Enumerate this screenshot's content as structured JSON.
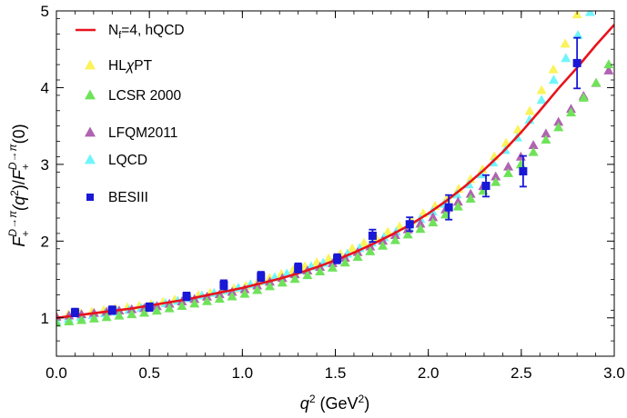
{
  "chart_data": {
    "type": "scatter",
    "xlabel_base": "q",
    "xlabel_sup": "2",
    "xlabel_units": " (GeV",
    "xlabel_units_sup": "2",
    "xlabel_close": ")",
    "ylabel_text": "F+(q2)/F+(0)",
    "ylabel_parts": {
      "f1": "F",
      "sub1": "+",
      "sup1": "D→π",
      "open": "(q",
      "sq": "2",
      "close": ")/",
      "f2": "F",
      "sub2": "+",
      "sup2": "D→π",
      "end": "(0)"
    },
    "xlim": [
      0.0,
      3.0
    ],
    "ylim": [
      0.5,
      5.0
    ],
    "xticks": [
      "0.0",
      "0.5",
      "1.0",
      "1.5",
      "2.0",
      "2.5",
      "3.0"
    ],
    "yticks": [
      "1",
      "2",
      "3",
      "4",
      "5"
    ],
    "colors": {
      "hqcd": "#e8131d",
      "hlchipt": "#fbf35a",
      "lcsr": "#6fe25a",
      "lfqm": "#b063b1",
      "lqcd": "#6ff5fb",
      "besiii": "#1818d6"
    },
    "legend": [
      {
        "key": "hqcd",
        "marker": "line",
        "label": "N_f=4, hQCD",
        "label_main": "N",
        "label_sub": "f",
        "label_rest": "=4, hQCD"
      },
      {
        "key": "hlchipt",
        "marker": "triangle",
        "label": "HLχPT",
        "label_main": "HL",
        "label_chi": "χ",
        "label_rest": "PT"
      },
      {
        "key": "lcsr",
        "marker": "triangle",
        "label": "LCSR 2000"
      },
      {
        "key": "lfqm",
        "marker": "triangle",
        "label": "LFQM2011"
      },
      {
        "key": "lqcd",
        "marker": "triangle",
        "label": "LQCD"
      },
      {
        "key": "besiii",
        "marker": "square",
        "label": "BESIII"
      }
    ],
    "series": [
      {
        "key": "hqcd",
        "type": "line",
        "x": [
          0.0,
          0.1,
          0.2,
          0.3,
          0.4,
          0.5,
          0.6,
          0.7,
          0.8,
          0.9,
          1.0,
          1.1,
          1.2,
          1.3,
          1.4,
          1.5,
          1.6,
          1.7,
          1.8,
          1.9,
          2.0,
          2.1,
          2.2,
          2.3,
          2.4,
          2.5,
          2.6,
          2.7,
          2.8,
          2.9,
          3.0
        ],
        "y": [
          1.0,
          1.03,
          1.06,
          1.09,
          1.12,
          1.16,
          1.2,
          1.24,
          1.29,
          1.34,
          1.39,
          1.45,
          1.51,
          1.58,
          1.66,
          1.75,
          1.85,
          1.96,
          2.08,
          2.21,
          2.36,
          2.53,
          2.72,
          2.93,
          3.16,
          3.42,
          3.7,
          3.99,
          4.26,
          4.55,
          4.82
        ]
      },
      {
        "key": "hlchipt",
        "type": "triangles",
        "x_range": [
          0.0,
          2.8
        ],
        "count": 45,
        "y_pts": [
          [
            0.0,
            1.02
          ],
          [
            0.5,
            1.17
          ],
          [
            1.0,
            1.4
          ],
          [
            1.5,
            1.8
          ],
          [
            1.9,
            2.25
          ],
          [
            2.1,
            2.55
          ],
          [
            2.3,
            2.95
          ],
          [
            2.5,
            3.5
          ],
          [
            2.7,
            4.35
          ],
          [
            2.8,
            4.95
          ]
        ]
      },
      {
        "key": "lcsr",
        "type": "triangles",
        "x_range": [
          0.0,
          2.97
        ],
        "count": 45,
        "y_pts": [
          [
            0.0,
            0.93
          ],
          [
            0.5,
            1.07
          ],
          [
            1.0,
            1.3
          ],
          [
            1.5,
            1.66
          ],
          [
            2.0,
            2.2
          ],
          [
            2.3,
            2.66
          ],
          [
            2.5,
            3.0
          ],
          [
            2.7,
            3.48
          ],
          [
            2.9,
            4.05
          ],
          [
            2.97,
            4.3
          ]
        ]
      },
      {
        "key": "lfqm",
        "type": "triangles",
        "x_range": [
          0.0,
          2.97
        ],
        "count": 45,
        "y_pts": [
          [
            0.0,
            1.01
          ],
          [
            0.5,
            1.13
          ],
          [
            1.0,
            1.36
          ],
          [
            1.5,
            1.72
          ],
          [
            2.0,
            2.27
          ],
          [
            2.3,
            2.72
          ],
          [
            2.5,
            3.1
          ],
          [
            2.7,
            3.55
          ],
          [
            2.9,
            4.05
          ],
          [
            2.97,
            4.22
          ]
        ]
      },
      {
        "key": "lqcd",
        "type": "triangles",
        "x_range": [
          0.0,
          2.87
        ],
        "count": 45,
        "y_pts": [
          [
            0.0,
            0.96
          ],
          [
            0.5,
            1.14
          ],
          [
            1.0,
            1.4
          ],
          [
            1.5,
            1.76
          ],
          [
            1.9,
            2.2
          ],
          [
            2.1,
            2.5
          ],
          [
            2.3,
            2.9
          ],
          [
            2.5,
            3.4
          ],
          [
            2.7,
            4.2
          ],
          [
            2.87,
            4.98
          ]
        ]
      },
      {
        "key": "besiii",
        "type": "errorbars",
        "points": [
          {
            "x": 0.1,
            "y": 1.07,
            "err": 0.05
          },
          {
            "x": 0.3,
            "y": 1.1,
            "err": 0.05
          },
          {
            "x": 0.5,
            "y": 1.14,
            "err": 0.05
          },
          {
            "x": 0.7,
            "y": 1.28,
            "err": 0.05
          },
          {
            "x": 0.9,
            "y": 1.43,
            "err": 0.06
          },
          {
            "x": 1.1,
            "y": 1.54,
            "err": 0.06
          },
          {
            "x": 1.3,
            "y": 1.65,
            "err": 0.06
          },
          {
            "x": 1.51,
            "y": 1.77,
            "err": 0.06
          },
          {
            "x": 1.7,
            "y": 2.07,
            "err": 0.08
          },
          {
            "x": 1.9,
            "y": 2.22,
            "err": 0.09
          },
          {
            "x": 2.11,
            "y": 2.44,
            "err": 0.16
          },
          {
            "x": 2.31,
            "y": 2.72,
            "err": 0.14
          },
          {
            "x": 2.51,
            "y": 2.91,
            "err": 0.2
          },
          {
            "x": 2.8,
            "y": 4.32,
            "err": 0.33
          }
        ]
      }
    ]
  }
}
